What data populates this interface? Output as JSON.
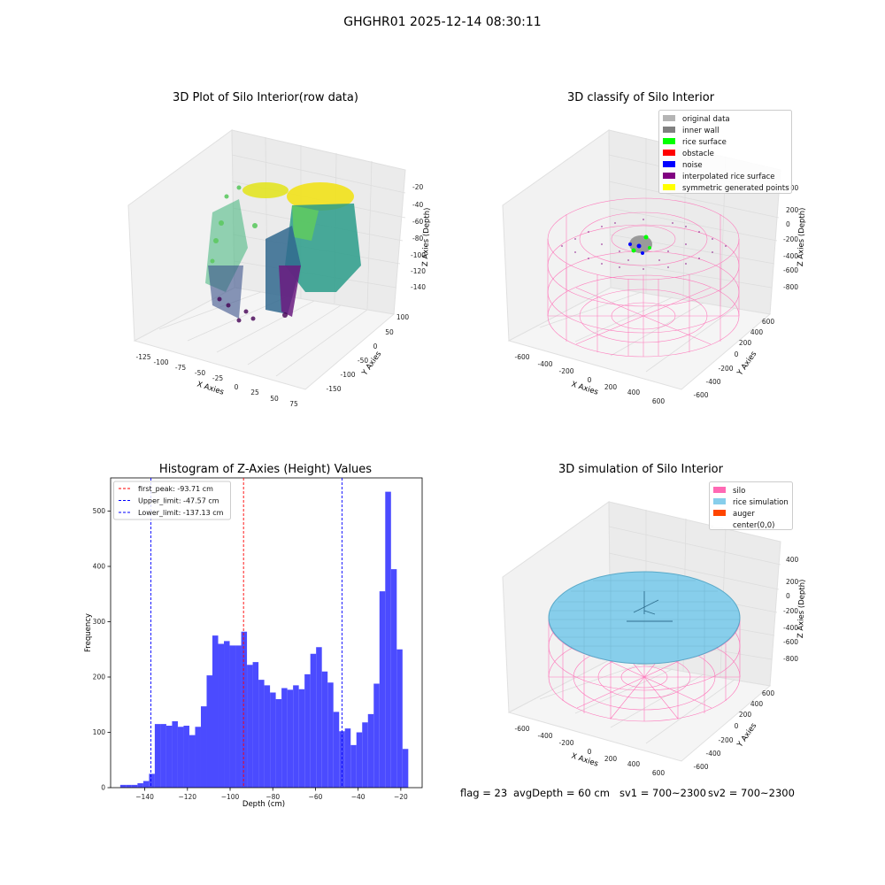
{
  "suptitle": "GHGHR01 2025-12-14 08:30:11",
  "panels": {
    "raw": {
      "title": "3D Plot of Silo Interior(row data)",
      "xlabel": "X Axies",
      "ylabel": "Y Axies",
      "zlabel": "Z Axies (Depth)",
      "xticks": [
        "-125",
        "-100",
        "-75",
        "-50",
        "-25",
        "0",
        "25",
        "50",
        "75"
      ],
      "yticks": [
        "100",
        "50",
        "0",
        "-50",
        "-100",
        "-150"
      ],
      "zticks": [
        "-20",
        "-40",
        "-60",
        "-80",
        "-100",
        "-120",
        "-140"
      ]
    },
    "classify": {
      "title": "3D classify of Silo Interior",
      "xlabel": "X Axies",
      "ylabel": "Y Axies",
      "zlabel": "Z Axies (Depth)",
      "xticks": [
        "-600",
        "-400",
        "-200",
        "0",
        "200",
        "400",
        "600"
      ],
      "yticks": [
        "600",
        "400",
        "200",
        "0",
        "-200",
        "-400",
        "-600"
      ],
      "zticks": [
        "400",
        "200",
        "0",
        "-200",
        "-400",
        "-600",
        "-800"
      ],
      "legend": [
        {
          "label": "original data",
          "color": "#b4b4b4"
        },
        {
          "label": "inner wall",
          "color": "#808080"
        },
        {
          "label": "rice surface",
          "color": "#00ff00"
        },
        {
          "label": "obstacle",
          "color": "#ff0000"
        },
        {
          "label": "noise",
          "color": "#0000ff"
        },
        {
          "label": "interpolated rice surface",
          "color": "#800080"
        },
        {
          "label": "symmetric generated points",
          "color": "#ffff00"
        }
      ]
    },
    "simulation": {
      "title": "3D simulation of Silo Interior",
      "xlabel": "X Axies",
      "ylabel": "Y Axies",
      "zlabel": "Z Axies (Depth)",
      "xticks": [
        "-600",
        "-400",
        "-200",
        "0",
        "200",
        "400",
        "600"
      ],
      "yticks": [
        "600",
        "400",
        "200",
        "0",
        "-200",
        "-400",
        "-600"
      ],
      "zticks": [
        "400",
        "200",
        "0",
        "-200",
        "-400",
        "-600",
        "-800"
      ],
      "legend": [
        {
          "label": "silo",
          "color": "#ff69b4"
        },
        {
          "label": "rice simulation",
          "color": "#87ceeb"
        },
        {
          "label": "auger",
          "color": "#ff4500"
        },
        {
          "label": "center(0,0)",
          "color": "#ffffff"
        }
      ]
    }
  },
  "status": {
    "flag": "flag = 23",
    "avg_depth": "avgDepth = 60 cm",
    "sv1": "sv1 = 700~2300",
    "sv2": "sv2 = 700~2300"
  },
  "chart_data": {
    "type": "bar",
    "title": "Histogram of Z-Axies (Height) Values",
    "xlabel": "Depth (cm)",
    "ylabel": "Frequency",
    "xlim": [
      -156,
      -10
    ],
    "ylim": [
      0,
      560
    ],
    "xticks": [
      -140,
      -120,
      -100,
      -80,
      -60,
      -40,
      -20
    ],
    "yticks": [
      0,
      100,
      200,
      300,
      400,
      500
    ],
    "bar_color": "#4b4bff",
    "bin_start": -151.5,
    "bin_width": 2.7,
    "values": [
      5,
      5,
      5,
      8,
      12,
      25,
      115,
      115,
      112,
      120,
      110,
      112,
      95,
      110,
      147,
      203,
      275,
      260,
      265,
      257,
      257,
      282,
      222,
      227,
      195,
      185,
      172,
      160,
      180,
      177,
      185,
      178,
      205,
      242,
      254,
      210,
      190,
      137,
      102,
      107,
      77,
      100,
      118,
      133,
      188,
      355,
      535,
      395,
      250,
      70
    ],
    "lines": [
      {
        "label": "first_peak: -93.71 cm",
        "x": -93.71,
        "color": "#ff0000"
      },
      {
        "label": "Upper_limit: -47.57 cm",
        "x": -47.57,
        "color": "#0000ff"
      },
      {
        "label": "Lower_limit: -137.13 cm",
        "x": -137.13,
        "color": "#0000ff"
      }
    ]
  }
}
